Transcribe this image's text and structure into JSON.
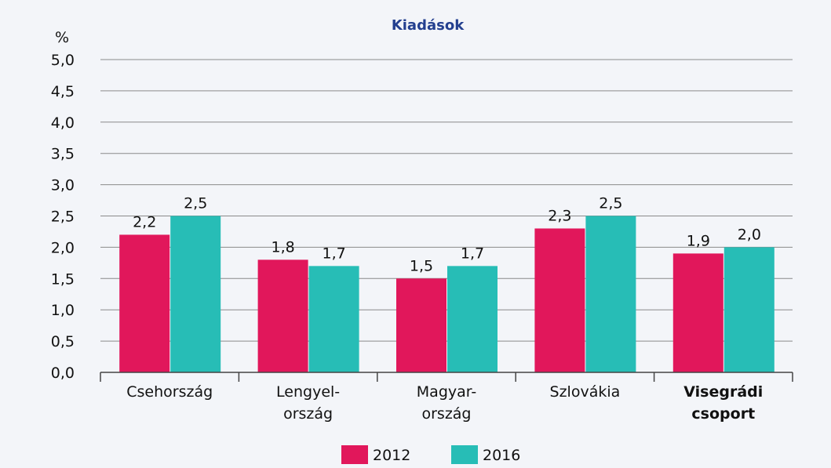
{
  "chart_data": {
    "type": "bar",
    "title": "Kiadások",
    "y_label": "%",
    "categories": [
      "Csehország",
      "Lengyel-\nország",
      "Magyar-\nország",
      "Szlovákia",
      "Visegrádi\ncsoport"
    ],
    "series": [
      {
        "name": "2012",
        "color": "#e1175b",
        "values": [
          2.2,
          1.8,
          1.5,
          2.3,
          1.9
        ],
        "value_labels": [
          "2,2",
          "1,8",
          "1,5",
          "2,3",
          "1,9"
        ]
      },
      {
        "name": "2016",
        "color": "#27bdb6",
        "values": [
          2.5,
          1.7,
          1.7,
          2.5,
          2.0
        ],
        "value_labels": [
          "2,5",
          "1,7",
          "1,7",
          "2,5",
          "2,0"
        ]
      }
    ],
    "ylim": [
      0,
      5
    ],
    "yticks": [
      {
        "value": 0,
        "label": "0,0"
      },
      {
        "value": 0.5,
        "label": "0,5"
      },
      {
        "value": 1,
        "label": "1,0"
      },
      {
        "value": 1.5,
        "label": "1,5"
      },
      {
        "value": 2,
        "label": "2,0"
      },
      {
        "value": 2.5,
        "label": "2,5"
      },
      {
        "value": 3,
        "label": "3,0"
      },
      {
        "value": 3.5,
        "label": "3,5"
      },
      {
        "value": 4,
        "label": "4,0"
      },
      {
        "value": 4.5,
        "label": "4,5"
      },
      {
        "value": 5,
        "label": "5,0"
      }
    ],
    "grid": true
  }
}
